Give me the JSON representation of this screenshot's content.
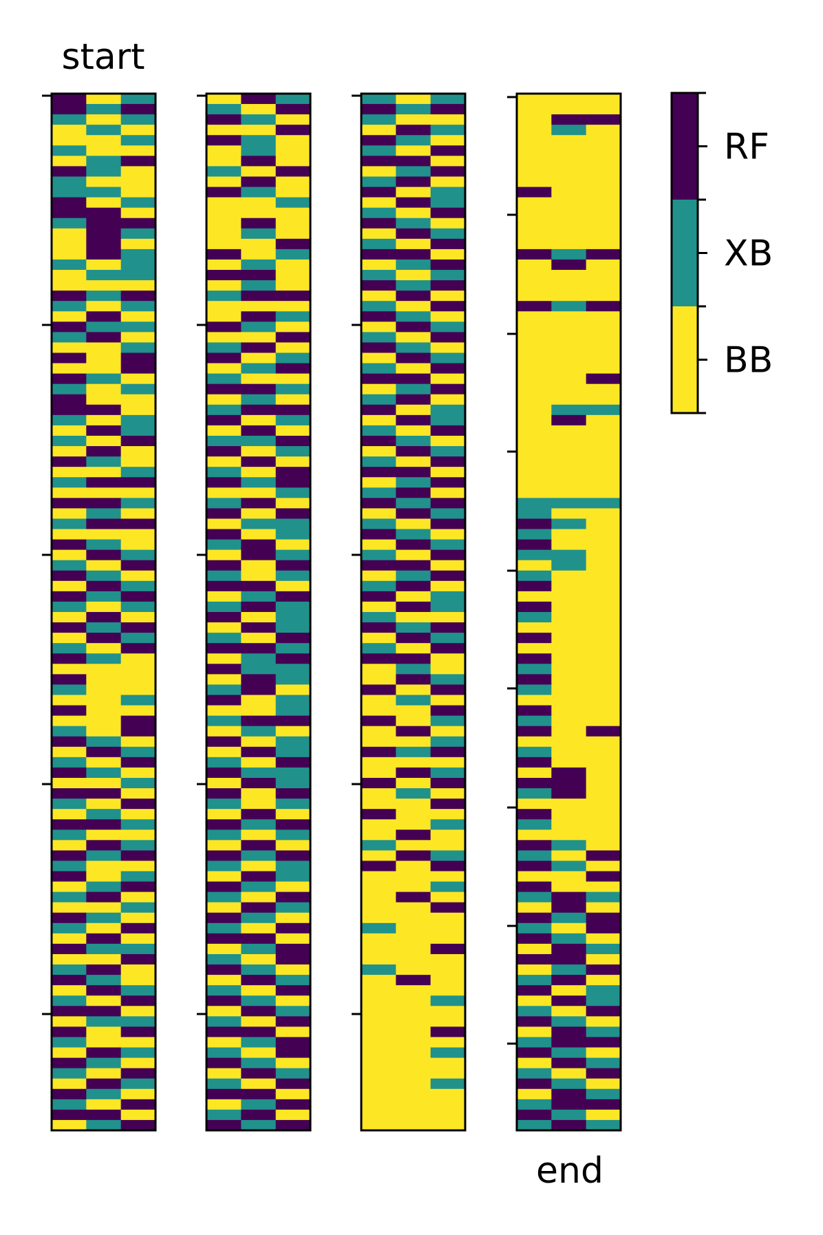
{
  "chart_data": {
    "type": "heatmap",
    "title_first": "start",
    "label_last": "end",
    "colorbar": {
      "labels": [
        "RF",
        "XB",
        "BB"
      ],
      "colors": {
        "RF": "#440154",
        "XB": "#21918c",
        "BB": "#fde725"
      }
    },
    "panels": [
      {
        "name": "panel-1",
        "rows": [
          "RYX",
          "RXR",
          "XYX",
          "YXY",
          "YYX",
          "XYY",
          "YXR",
          "RXY",
          "XYY",
          "XXY",
          "RYX",
          "RRY",
          "XRR",
          "YRX",
          "YRY",
          "YRX",
          "XYX",
          "YXX",
          "YYY",
          "RXR",
          "XYX",
          "YRY",
          "RXX",
          "XRY",
          "YYX",
          "RYR",
          "YYR",
          "RXY",
          "XYX",
          "RYY",
          "RRY",
          "XYX",
          "YRX",
          "XYR",
          "YRY",
          "RXY",
          "YYX",
          "XRR",
          "YYY",
          "RRX",
          "YXY",
          "XRR",
          "YYY",
          "RXY",
          "YRX",
          "XYR",
          "RXY",
          "YRX",
          "RXR",
          "XYX",
          "YRY",
          "RXR",
          "YRX",
          "XYR",
          "RXY",
          "YYY",
          "RYY",
          "XYY",
          "YYX",
          "RYY",
          "YYR",
          "XYR",
          "RXY",
          "YRX",
          "XYR",
          "RXY",
          "YYX",
          "RRY",
          "XYR",
          "YXY",
          "RRX",
          "XYY",
          "YRX",
          "RXR",
          "XYY",
          "RYX",
          "YXR",
          "XRY",
          "YYX",
          "RXY",
          "XYR",
          "YRY",
          "RXX",
          "YYR",
          "XRY",
          "RXY",
          "YRX",
          "XYR",
          "RRY",
          "YXX",
          "RYR",
          "XYY",
          "YRX",
          "RXY",
          "XYR",
          "YRX",
          "RXY",
          "XYR",
          "RRY",
          "YXR"
        ]
      },
      {
        "name": "panel-2",
        "rows": [
          "YRX",
          "XYR",
          "RXY",
          "YYR",
          "RXY",
          "YXY",
          "YRY",
          "XYR",
          "YRY",
          "RXY",
          "YYX",
          "YYY",
          "YRY",
          "YXY",
          "YYR",
          "RYX",
          "YXY",
          "RRY",
          "YXY",
          "XRR",
          "YYY",
          "YRX",
          "RXY",
          "YYR",
          "XRY",
          "RYX",
          "YXR",
          "XYY",
          "RRX",
          "YXY",
          "XRR",
          "RYX",
          "YRY",
          "XXR",
          "RYX",
          "YRY",
          "XYR",
          "RXR",
          "YYX",
          "XRY",
          "RYR",
          "YXX",
          "RYX",
          "XRY",
          "YRX",
          "RYR",
          "XYX",
          "RRY",
          "YXR",
          "XRX",
          "RYX",
          "YRX",
          "XYR",
          "RRX",
          "YXR",
          "RXX",
          "YRX",
          "XRY",
          "RYX",
          "YYX",
          "XRR",
          "YXY",
          "RYX",
          "YRX",
          "XYR",
          "RXX",
          "YRX",
          "RYR",
          "XYX",
          "YRY",
          "RXR",
          "XYX",
          "YRY",
          "RXR",
          "XYX",
          "YRX",
          "RXY",
          "XYR",
          "YRX",
          "RXY",
          "XYR",
          "RRY",
          "YXR",
          "XYR",
          "RXY",
          "YRX",
          "XYR",
          "RXY",
          "YRX",
          "XYR",
          "RRY",
          "YXR",
          "XYR",
          "RXY",
          "YRX",
          "XYR",
          "RRY",
          "YXR",
          "XRY",
          "RXR"
        ]
      },
      {
        "name": "panel-3",
        "rows": [
          "XYX",
          "RXR",
          "XYY",
          "YRX",
          "RXY",
          "XYR",
          "RRY",
          "YXR",
          "XRY",
          "RYX",
          "YRX",
          "XYR",
          "RXY",
          "YRX",
          "XYR",
          "RRY",
          "YXR",
          "XYX",
          "RXR",
          "YRY",
          "XYR",
          "RXY",
          "YRX",
          "XYR",
          "RXY",
          "YRX",
          "XYR",
          "RRY",
          "YXR",
          "XRY",
          "RYX",
          "YRX",
          "XYR",
          "RXY",
          "YRX",
          "XYR",
          "RRY",
          "YXR",
          "XRY",
          "RXR",
          "YRX",
          "XYR",
          "RXY",
          "YRX",
          "XYR",
          "RRY",
          "YXR",
          "XRY",
          "RYX",
          "YRX",
          "XYY",
          "RXR",
          "YRX",
          "XYR",
          "RRY",
          "YXY",
          "YRX",
          "RYR",
          "YXY",
          "YYR",
          "RYX",
          "YRY",
          "YYX",
          "RXR",
          "YYY",
          "YRX",
          "RYR",
          "YXY",
          "YYR",
          "RYY",
          "YYX",
          "YRY",
          "XYY",
          "YRX",
          "RYR",
          "YYY",
          "YYX",
          "YRY",
          "YYR",
          "YYY",
          "XYY",
          "YYY",
          "YYR",
          "YYY",
          "XYY",
          "YRY",
          "YYY",
          "YYX",
          "YYY",
          "YYY",
          "YYR",
          "YYY",
          "YYX",
          "YYY",
          "YYY",
          "YYX",
          "YYY",
          "YYY",
          "YYY",
          "YYY"
        ]
      },
      {
        "name": "panel-4",
        "rows": [
          "YYY",
          "YYY",
          "YRR",
          "YXY",
          "YYY",
          "YYY",
          "YYY",
          "YYY",
          "YYY",
          "RYY",
          "YYY",
          "YYY",
          "YYY",
          "YYY",
          "YYY",
          "RXR",
          "YRY",
          "YYY",
          "YYY",
          "YYY",
          "RXR",
          "YYY",
          "YYY",
          "YYY",
          "YYY",
          "YYY",
          "YYY",
          "YYR",
          "YYY",
          "YYY",
          "YXX",
          "YRY",
          "YYY",
          "YYY",
          "YYY",
          "YYY",
          "YYY",
          "YYY",
          "YYY",
          "XXX",
          "XYY",
          "RXY",
          "XYY",
          "RYY",
          "XXY",
          "YXY",
          "XYY",
          "RYY",
          "YYY",
          "RYY",
          "XYY",
          "YYY",
          "RYY",
          "YYY",
          "RYY",
          "XYY",
          "RYY",
          "XYY",
          "YYY",
          "RYY",
          "XYY",
          "RYR",
          "YYY",
          "XYY",
          "RYY",
          "YRY",
          "RRY",
          "XRY",
          "YYY",
          "RYY",
          "XYY",
          "YYY",
          "RXY",
          "XYR",
          "RXY",
          "YYR",
          "RYY",
          "XRX",
          "YRY",
          "RXR",
          "XYR",
          "RXY",
          "YRX",
          "RRY",
          "YXR",
          "XRY",
          "RYX",
          "YRX",
          "XYR",
          "RXY",
          "YRX",
          "XRR",
          "RXY",
          "YRX",
          "XYR",
          "RXY",
          "YRX",
          "XRR",
          "RXY",
          "XRX"
        ]
      }
    ]
  }
}
